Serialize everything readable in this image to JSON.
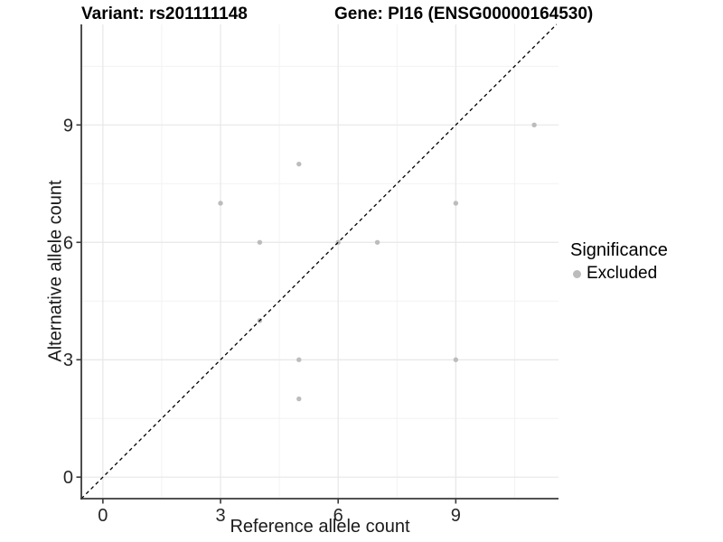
{
  "chart_data": {
    "type": "scatter",
    "title_left": "Variant: rs201111148",
    "title_right": "Gene: PI16 (ENSG00000164530)",
    "xlabel": "Reference allele count",
    "ylabel": "Alternative allele count",
    "x_ticks": [
      0,
      3,
      6,
      9
    ],
    "y_ticks": [
      0,
      3,
      6,
      9
    ],
    "minor_ticks": [
      1.5,
      4.5,
      7.5,
      10.5
    ],
    "xlim": [
      -0.55,
      11.62
    ],
    "ylim": [
      -0.55,
      11.57
    ],
    "grid": "major+minor",
    "identity_line": {
      "slope": 1,
      "intercept": 0,
      "style": "dashed",
      "color": "#000000"
    },
    "series": [
      {
        "name": "Excluded",
        "color": "#bcbcbc",
        "points": [
          [
            3,
            7
          ],
          [
            4,
            4
          ],
          [
            4,
            6
          ],
          [
            5,
            2
          ],
          [
            5,
            3
          ],
          [
            5,
            8
          ],
          [
            6,
            6
          ],
          [
            7,
            6
          ],
          [
            9,
            3
          ],
          [
            9,
            7
          ],
          [
            11,
            9
          ]
        ]
      }
    ],
    "legend": {
      "title": "Significance",
      "position": "right",
      "items": [
        {
          "label": "Excluded",
          "color": "#bcbcbc"
        }
      ]
    },
    "style": {
      "grid_major_color": "#e7e7e7",
      "grid_minor_color": "#f2f2f2",
      "axis_color": "#3a3a3a",
      "tick_label_color": "#262626",
      "point_radius": 2.7
    }
  }
}
